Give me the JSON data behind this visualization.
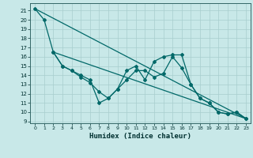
{
  "xlabel": "Humidex (Indice chaleur)",
  "bg_color": "#c8e8e8",
  "grid_color": "#a8cece",
  "line_color": "#006868",
  "xlim": [
    -0.5,
    23.5
  ],
  "ylim": [
    8.8,
    21.8
  ],
  "yticks": [
    9,
    10,
    11,
    12,
    13,
    14,
    15,
    16,
    17,
    18,
    19,
    20,
    21
  ],
  "xticks": [
    0,
    1,
    2,
    3,
    4,
    5,
    6,
    7,
    8,
    9,
    10,
    11,
    12,
    13,
    14,
    15,
    16,
    17,
    18,
    19,
    20,
    21,
    22,
    23
  ],
  "line1_x": [
    0,
    1,
    2,
    3,
    4,
    5,
    6,
    7,
    8,
    9,
    10,
    11,
    12,
    13,
    14,
    15,
    16,
    17,
    18,
    19,
    20,
    21,
    22,
    23
  ],
  "line1_y": [
    21.2,
    20.0,
    16.5,
    15.0,
    14.5,
    14.0,
    13.5,
    11.0,
    11.5,
    12.5,
    14.5,
    15.0,
    13.5,
    15.5,
    16.0,
    16.2,
    16.2,
    13.0,
    11.5,
    11.0,
    10.0,
    9.8,
    10.0,
    9.3
  ],
  "line2_x": [
    2,
    3,
    4,
    5,
    6,
    7,
    8,
    9,
    10,
    11,
    12,
    13,
    14,
    15,
    16,
    17,
    18,
    19,
    20,
    21,
    22,
    23
  ],
  "line2_y": [
    16.5,
    15.0,
    14.5,
    13.8,
    13.2,
    12.2,
    11.5,
    12.5,
    13.5,
    14.5,
    14.5,
    13.8,
    14.2,
    16.0,
    14.8,
    13.0,
    11.5,
    11.0,
    10.0,
    9.8,
    10.0,
    9.3
  ],
  "line3_x": [
    0,
    23
  ],
  "line3_y": [
    21.2,
    9.3
  ],
  "line4_x": [
    2,
    23
  ],
  "line4_y": [
    16.5,
    9.3
  ]
}
